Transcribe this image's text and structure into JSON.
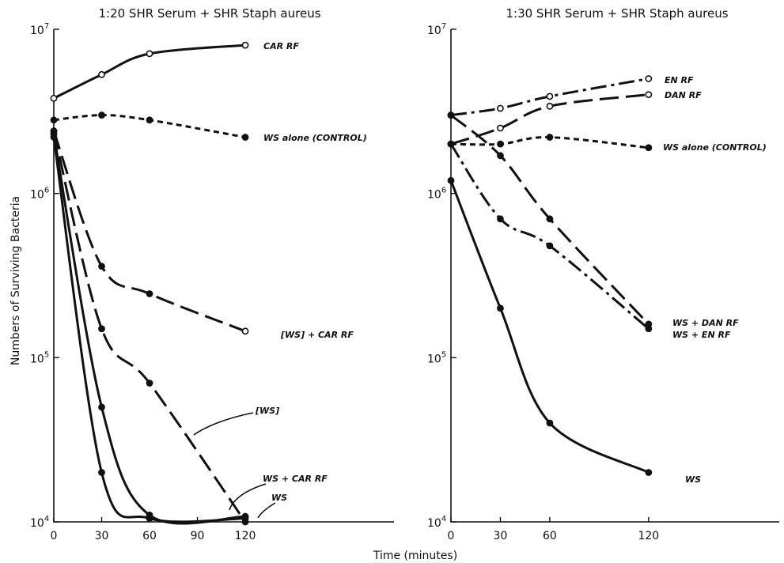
{
  "chart_data": [
    {
      "type": "line",
      "title": "1:20 SHR Serum + SHR Staph aureus",
      "ylabel": "Numbers of Surviving Bacteria",
      "xlabel": "",
      "y_scale": "log",
      "ylim": [
        10000,
        10000000
      ],
      "xlim": [
        0,
        165
      ],
      "x_ticks": [
        "0",
        "30",
        "60",
        "90",
        "120"
      ],
      "y_tick_labels": [
        {
          "base": "10",
          "exp": "4"
        },
        {
          "base": "10",
          "exp": "5"
        },
        {
          "base": "10",
          "exp": "6"
        },
        {
          "base": "10",
          "exp": "7"
        }
      ],
      "series": [
        {
          "name": "CAR RF",
          "marker": "open",
          "dash": "solid",
          "x": [
            0,
            30,
            60,
            120
          ],
          "y": [
            3800000,
            5300000,
            7100000,
            8000000
          ]
        },
        {
          "name": "WS alone (CONTROL)",
          "marker": "filled",
          "dash": "short",
          "x": [
            0,
            30,
            60,
            120
          ],
          "y": [
            2800000,
            3000000,
            2800000,
            2200000
          ]
        },
        {
          "name": "[WS] + CAR RF",
          "marker": "mixed",
          "dash": "long",
          "x": [
            0,
            30,
            60,
            120
          ],
          "y": [
            2400000,
            360000,
            245000,
            145000
          ]
        },
        {
          "name": "[WS]",
          "marker": "filled",
          "dash": "long",
          "x": [
            0,
            30,
            60,
            120
          ],
          "y": [
            2400000,
            150000,
            70000,
            10000
          ]
        },
        {
          "name": "WS + CAR RF",
          "marker": "filled",
          "dash": "solid",
          "x": [
            0,
            30,
            60,
            120
          ],
          "y": [
            2300000,
            50000,
            11000,
            10800
          ]
        },
        {
          "name": "WS",
          "marker": "filled",
          "dash": "solid",
          "x": [
            0,
            30,
            60,
            120
          ],
          "y": [
            2200000,
            20000,
            10500,
            10500
          ]
        }
      ]
    },
    {
      "type": "line",
      "title": "1:30 SHR Serum + SHR Staph aureus",
      "ylabel": "",
      "xlabel": "",
      "y_scale": "log",
      "ylim": [
        10000,
        10000000
      ],
      "xlim": [
        0,
        165
      ],
      "x_ticks": [
        "0",
        "30",
        "60",
        "120"
      ],
      "y_tick_labels": [
        {
          "base": "10",
          "exp": "4"
        },
        {
          "base": "10",
          "exp": "5"
        },
        {
          "base": "10",
          "exp": "6"
        },
        {
          "base": "10",
          "exp": "7"
        }
      ],
      "series": [
        {
          "name": "EN RF",
          "marker": "open",
          "dash": "dashdot",
          "x": [
            0,
            30,
            60,
            120
          ],
          "y": [
            3000000,
            3300000,
            3900000,
            5000000
          ]
        },
        {
          "name": "DAN RF",
          "marker": "open",
          "dash": "long",
          "x": [
            0,
            30,
            60,
            120
          ],
          "y": [
            2000000,
            2500000,
            3400000,
            4000000
          ]
        },
        {
          "name": "WS alone (CONTROL)",
          "marker": "filled",
          "dash": "short",
          "x": [
            0,
            30,
            60,
            120
          ],
          "y": [
            2000000,
            2000000,
            2200000,
            1900000
          ]
        },
        {
          "name": "WS + DAN RF",
          "marker": "filled",
          "dash": "long",
          "x": [
            0,
            30,
            60,
            120
          ],
          "y": [
            3000000,
            1700000,
            700000,
            160000
          ]
        },
        {
          "name": "WS + EN RF",
          "marker": "filled",
          "dash": "dashdot",
          "x": [
            0,
            30,
            60,
            120
          ],
          "y": [
            2000000,
            700000,
            480000,
            150000
          ]
        },
        {
          "name": "WS",
          "marker": "filled",
          "dash": "solid",
          "x": [
            0,
            30,
            60,
            120
          ],
          "y": [
            1200000,
            200000,
            40000,
            20000
          ]
        }
      ]
    }
  ],
  "shared_xlabel": "Time (minutes)"
}
